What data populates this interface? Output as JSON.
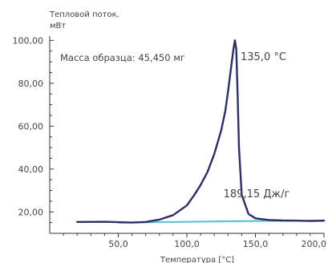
{
  "chart_data": {
    "type": "line",
    "ylabel_line1": "Тепловой поток,",
    "ylabel_line2": "мВт",
    "xlabel": "Температура [°C]",
    "xlim": [
      0,
      200
    ],
    "ylim": [
      10,
      102
    ],
    "yticks": [
      20,
      40,
      60,
      80,
      100
    ],
    "ytick_labels": [
      "20,00",
      "40,00",
      "60,00",
      "80,00",
      "100,00"
    ],
    "xticks": [
      50,
      100,
      150,
      200
    ],
    "xtick_labels": [
      "50,0",
      "100,0",
      "150,0",
      "200,0"
    ],
    "sample_mass_label": "Масса образца: 45,450 мг",
    "peak_label": "135,0 °C",
    "enthalpy_label": "189,15 Дж/г",
    "colors": {
      "curve": "#2b2f63",
      "baseline": "#5ec4d6",
      "axis": "#333333"
    },
    "series": [
      {
        "role": "heat-flow",
        "x": [
          20,
          40,
          60,
          70,
          80,
          90,
          100,
          105,
          110,
          115,
          120,
          125,
          128,
          130,
          132,
          134,
          135,
          136,
          137,
          138,
          140,
          145,
          150,
          160,
          170,
          180,
          190,
          200
        ],
        "y": [
          15.3,
          15.4,
          15.0,
          15.3,
          16.4,
          18.5,
          23.0,
          27.5,
          32.5,
          38.5,
          47.0,
          58.0,
          67.0,
          76.0,
          86.0,
          96.0,
          100.0,
          96.0,
          75.0,
          50.0,
          28.0,
          19.0,
          17.0,
          16.2,
          16.0,
          15.9,
          15.8,
          15.9
        ]
      },
      {
        "role": "baseline",
        "x": [
          50,
          180
        ],
        "y": [
          15.0,
          16.0
        ]
      }
    ]
  }
}
